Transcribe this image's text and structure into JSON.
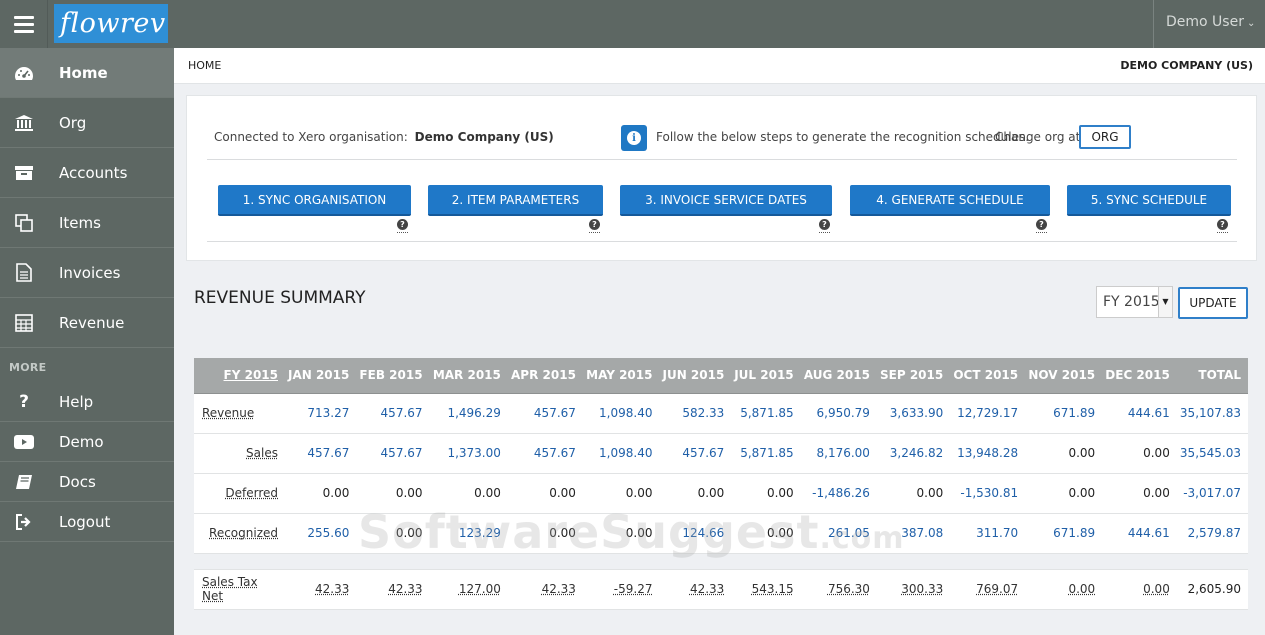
{
  "app": {
    "logo": "flowrev",
    "user": "Demo User"
  },
  "sidebar": {
    "items": [
      {
        "label": "Home",
        "icon": "dashboard-icon"
      },
      {
        "label": "Org",
        "icon": "bank-icon"
      },
      {
        "label": "Accounts",
        "icon": "archive-icon"
      },
      {
        "label": "Items",
        "icon": "copy-icon"
      },
      {
        "label": "Invoices",
        "icon": "document-icon"
      },
      {
        "label": "Revenue",
        "icon": "calculator-icon"
      }
    ],
    "more_label": "MORE",
    "more_items": [
      {
        "label": "Help",
        "icon": "question-icon"
      },
      {
        "label": "Demo",
        "icon": "youtube-play-icon"
      },
      {
        "label": "Docs",
        "icon": "book-icon"
      },
      {
        "label": "Logout",
        "icon": "sign-out-icon"
      }
    ]
  },
  "header": {
    "breadcrumb": "HOME",
    "company": "DEMO COMPANY (US)"
  },
  "steps_card": {
    "connected_label": "Connected to Xero organisation:",
    "connected_org": "Demo Company (US)",
    "follow_text": "Follow the below steps to generate the recognition schedules.",
    "change_text": "Change org at",
    "org_button": "ORG",
    "steps": [
      "1. SYNC ORGANISATION",
      "2. ITEM PARAMETERS",
      "3. INVOICE SERVICE DATES",
      "4. GENERATE SCHEDULE",
      "5. SYNC SCHEDULE"
    ],
    "help_glyph": "?"
  },
  "summary": {
    "title": "REVENUE SUMMARY",
    "fy_selected": "FY 2015",
    "update_button": "UPDATE"
  },
  "table": {
    "headers": [
      "FY 2015",
      "JAN 2015",
      "FEB 2015",
      "MAR 2015",
      "APR 2015",
      "MAY 2015",
      "JUN 2015",
      "JUL 2015",
      "AUG 2015",
      "SEP 2015",
      "OCT 2015",
      "NOV 2015",
      "DEC 2015",
      "TOTAL"
    ],
    "rows": [
      {
        "label": "Revenue",
        "values": [
          "713.27",
          "457.67",
          "1,496.29",
          "457.67",
          "1,098.40",
          "582.33",
          "5,871.85",
          "6,950.79",
          "3,633.90",
          "12,729.17",
          "671.89",
          "444.61",
          "35,107.83"
        ]
      },
      {
        "label": "Sales",
        "values": [
          "457.67",
          "457.67",
          "1,373.00",
          "457.67",
          "1,098.40",
          "457.67",
          "5,871.85",
          "8,176.00",
          "3,246.82",
          "13,948.28",
          "0.00",
          "0.00",
          "35,545.03"
        ]
      },
      {
        "label": "Deferred",
        "values": [
          "0.00",
          "0.00",
          "0.00",
          "0.00",
          "0.00",
          "0.00",
          "0.00",
          "-1,486.26",
          "0.00",
          "-1,530.81",
          "0.00",
          "0.00",
          "-3,017.07"
        ]
      },
      {
        "label": "Recognized",
        "values": [
          "255.60",
          "0.00",
          "123.29",
          "0.00",
          "0.00",
          "124.66",
          "0.00",
          "261.05",
          "387.08",
          "311.70",
          "671.89",
          "444.61",
          "2,579.87"
        ]
      },
      {
        "label": "Sales Tax Net",
        "values": [
          "42.33",
          "42.33",
          "127.00",
          "42.33",
          "-59.27",
          "42.33",
          "543.15",
          "756.30",
          "300.33",
          "769.07",
          "0.00",
          "0.00",
          "2,605.90"
        ]
      }
    ]
  },
  "watermark": {
    "main": "SoftwareSuggest",
    "suffix": ".com"
  }
}
